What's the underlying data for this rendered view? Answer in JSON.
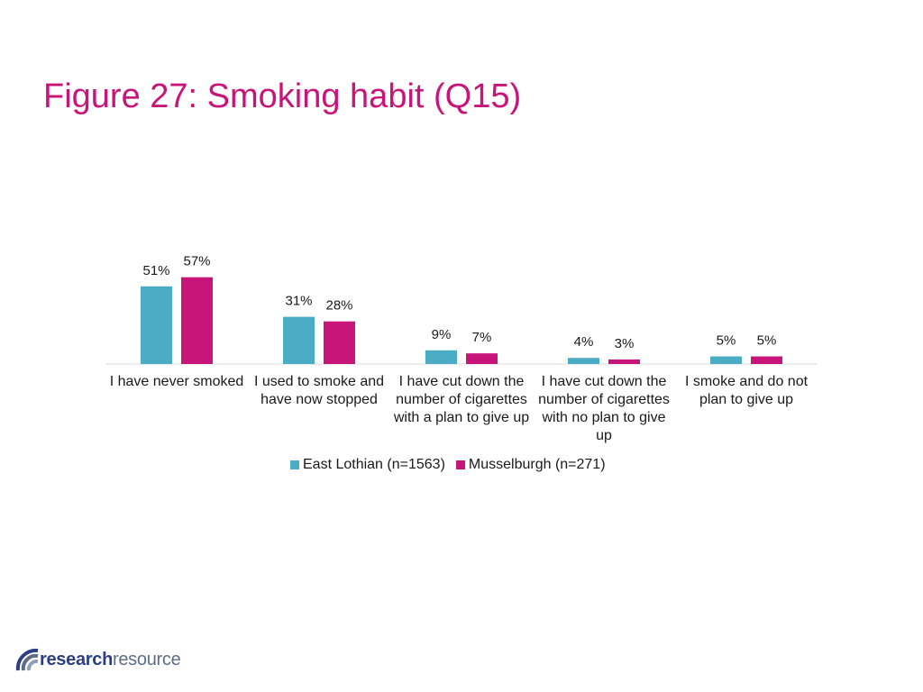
{
  "title": "Figure 27: Smoking habit (Q15)",
  "colors": {
    "accent": "#c8157a",
    "series1": "#4bacc6",
    "series2": "#c8157a"
  },
  "logo": {
    "bold": "research",
    "light": "resource",
    "icon": "logo-arcs-icon"
  },
  "chart_data": {
    "type": "bar",
    "categories": [
      "I have never smoked",
      "I used to smoke and have now stopped",
      "I have cut down the number of cigarettes with a plan to give up",
      "I have cut down the number of cigarettes with no plan to give up",
      "I smoke and do not plan to give up"
    ],
    "series": [
      {
        "name": "East Lothian (n=1563)",
        "values": [
          51,
          31,
          9,
          4,
          5
        ],
        "labels": [
          "51%",
          "31%",
          "9%",
          "4%",
          "5%"
        ],
        "color": "#4bacc6"
      },
      {
        "name": "Musselburgh (n=271)",
        "values": [
          57,
          28,
          7,
          3,
          5
        ],
        "labels": [
          "57%",
          "28%",
          "7%",
          "3%",
          "5%"
        ],
        "color": "#c8157a"
      }
    ],
    "ylim": [
      0,
      60
    ],
    "grid": false,
    "legend": "bottom"
  }
}
